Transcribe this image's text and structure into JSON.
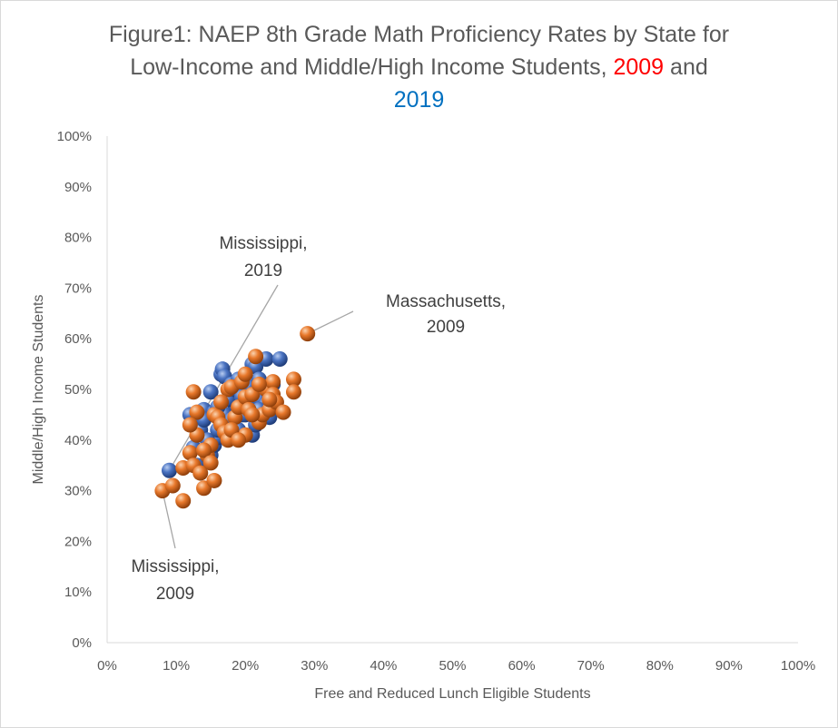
{
  "title": {
    "part1": "Figure1: NAEP 8th Grade Math Proficiency Rates by State for",
    "part2": "Low-Income and Middle/High Income Students,",
    "year_2009": "2009",
    "and": "and",
    "year_2019": "2019"
  },
  "chart_data": {
    "type": "scatter",
    "xlabel": "Free and Reduced Lunch Eligible Students",
    "ylabel": "Middle/High Income Students",
    "xlim": [
      0,
      100
    ],
    "ylim": [
      0,
      100
    ],
    "x_ticks": [
      "0%",
      "10%",
      "20%",
      "30%",
      "40%",
      "50%",
      "60%",
      "70%",
      "80%",
      "90%",
      "100%"
    ],
    "y_ticks": [
      "0%",
      "10%",
      "20%",
      "30%",
      "40%",
      "50%",
      "60%",
      "70%",
      "80%",
      "90%",
      "100%"
    ],
    "grid": false,
    "legend": "none",
    "series": [
      {
        "label_in_title": "2019",
        "color": "#4472c4",
        "points": [
          [
            9,
            34
          ],
          [
            12,
            45
          ],
          [
            14,
            46
          ],
          [
            15,
            49.5
          ],
          [
            16.5,
            53
          ],
          [
            16.7,
            54
          ],
          [
            17,
            52.5
          ],
          [
            18,
            51
          ],
          [
            18.5,
            47
          ],
          [
            19,
            52
          ],
          [
            19.5,
            45
          ],
          [
            20,
            49
          ],
          [
            20.5,
            47
          ],
          [
            21,
            55
          ],
          [
            21.5,
            54.5
          ],
          [
            22,
            52
          ],
          [
            22.5,
            50
          ],
          [
            23,
            56
          ],
          [
            23.5,
            44.5
          ],
          [
            25,
            56
          ],
          [
            15,
            37
          ],
          [
            15.5,
            39
          ],
          [
            16,
            40.5
          ],
          [
            16.5,
            43
          ],
          [
            17,
            45
          ],
          [
            18,
            44
          ],
          [
            19,
            42
          ],
          [
            20,
            45
          ],
          [
            21,
            41
          ],
          [
            22,
            48
          ],
          [
            23,
            47
          ],
          [
            24,
            51
          ],
          [
            13.5,
            42
          ],
          [
            14,
            44
          ],
          [
            15.5,
            45.5
          ],
          [
            16,
            46.5
          ],
          [
            17.5,
            48
          ],
          [
            18.5,
            50
          ],
          [
            20.5,
            50.5
          ],
          [
            22,
            46
          ],
          [
            12.5,
            38.5
          ],
          [
            13,
            35
          ],
          [
            14.5,
            40
          ],
          [
            16,
            42
          ],
          [
            21.5,
            43
          ],
          [
            19.5,
            48.5
          ],
          [
            17.5,
            41
          ]
        ]
      },
      {
        "label_in_title": "2009",
        "color": "#ed7d31",
        "points": [
          [
            8,
            30
          ],
          [
            9.5,
            31
          ],
          [
            11,
            28
          ],
          [
            11,
            34.5
          ],
          [
            12,
            37.5
          ],
          [
            12.5,
            35
          ],
          [
            13,
            41
          ],
          [
            13.5,
            33.5
          ],
          [
            14,
            30.5
          ],
          [
            14.5,
            37
          ],
          [
            15,
            39
          ],
          [
            15.5,
            32
          ],
          [
            15.5,
            45
          ],
          [
            16,
            44.5
          ],
          [
            16.5,
            43
          ],
          [
            17,
            41.5
          ],
          [
            17.5,
            40
          ],
          [
            17.5,
            50
          ],
          [
            18,
            50.5
          ],
          [
            18.5,
            44.5
          ],
          [
            19,
            46.5
          ],
          [
            19.5,
            51.5
          ],
          [
            20,
            41
          ],
          [
            20,
            48.5
          ],
          [
            20,
            53
          ],
          [
            21,
            49
          ],
          [
            21.5,
            56.5
          ],
          [
            22,
            43.5
          ],
          [
            22.5,
            45
          ],
          [
            23,
            50
          ],
          [
            23.5,
            46
          ],
          [
            24,
            51.5
          ],
          [
            24,
            49
          ],
          [
            24.5,
            47.5
          ],
          [
            25.5,
            45.5
          ],
          [
            27,
            52
          ],
          [
            27,
            49.5
          ],
          [
            29,
            61
          ],
          [
            12.5,
            49.5
          ],
          [
            14,
            38
          ],
          [
            15,
            35.5
          ],
          [
            16.5,
            47.5
          ],
          [
            18,
            42
          ],
          [
            19,
            40
          ],
          [
            20.5,
            46
          ],
          [
            22,
            51
          ],
          [
            21,
            45
          ],
          [
            13,
            45.5
          ],
          [
            12,
            43
          ],
          [
            23.5,
            48
          ]
        ]
      }
    ],
    "annotations": [
      {
        "name": "ms2019",
        "line1": "Mississippi,",
        "line2": "2019",
        "x": 9,
        "y": 34
      },
      {
        "name": "ma2009",
        "line1": "Massachusetts,",
        "line2": "2009",
        "x": 29,
        "y": 61
      },
      {
        "name": "ms2009",
        "line1": "Mississippi,",
        "line2": "2009",
        "x": 8,
        "y": 30
      }
    ]
  }
}
